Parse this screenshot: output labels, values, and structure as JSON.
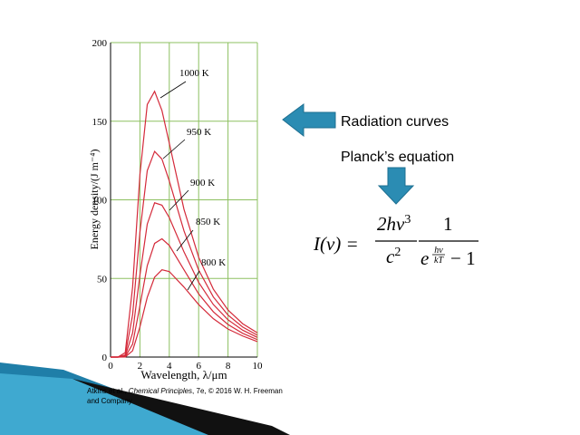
{
  "chart_data": {
    "type": "line",
    "x": [
      0,
      0.5,
      1,
      1.5,
      2,
      2.5,
      3,
      3.5,
      4,
      5,
      6,
      7,
      8,
      9,
      10
    ],
    "series": [
      {
        "name": "1000 K",
        "color": "#d42a3a",
        "values": [
          0,
          0,
          2.8,
          44.4,
          116,
          160.6,
          169,
          156.8,
          136,
          94,
          63.5,
          43.2,
          29.9,
          21.2,
          15.4
        ]
      },
      {
        "name": "950 K",
        "color": "#d42a3a",
        "values": [
          0,
          0,
          1.3,
          26.8,
          79.4,
          118.6,
          130.8,
          125.9,
          112,
          80.3,
          55.3,
          38.2,
          26.7,
          19.1,
          13.9
        ]
      },
      {
        "name": "900 K",
        "color": "#d42a3a",
        "values": [
          0,
          0,
          0.56,
          15.3,
          52.1,
          84.6,
          98.1,
          96.6,
          88.7,
          66.9,
          47.5,
          33.4,
          23.7,
          17.1,
          12.5
        ]
      },
      {
        "name": "850 K",
        "color": "#d42a3a",
        "values": [
          0,
          0,
          0.22,
          8.2,
          32.6,
          58.1,
          72.3,
          75.2,
          71,
          55.5,
          40.2,
          28.8,
          20.7,
          15.1,
          11.1
        ]
      },
      {
        "name": "800 K",
        "color": "#d42a3a",
        "values": [
          0,
          0,
          0.08,
          4,
          19.2,
          38,
          50.8,
          55.5,
          54.4,
          44.5,
          33.4,
          24.4,
          17.8,
          13.4,
          9.8
        ]
      }
    ],
    "xlim": [
      0,
      10
    ],
    "xticks": [
      0,
      2,
      4,
      6,
      8,
      10
    ],
    "ylim": [
      0,
      200
    ],
    "yticks": [
      0,
      50,
      100,
      150,
      200
    ],
    "grid": true,
    "grid_color": "#8dc060",
    "x_label": "Wavelength, λ/μm",
    "y_label": "Energy density/(J m⁻⁴)"
  },
  "caption": {
    "before": "Atkins et al., ",
    "italic": "Chemical Principles",
    "after": ", 7e, © 2016 W. H. Freeman",
    "line2": "and Company"
  },
  "callout_1": "Radiation curves",
  "callout_2": "Planck’s equation",
  "equation": {
    "lhs": "I(ν) =",
    "num1": "2hν",
    "num1_exp": "3",
    "den1": "c",
    "den1_exp": "2",
    "num2": "1",
    "den2_base": "e",
    "den2_exp_num": "hν",
    "den2_exp_den": "kT",
    "den2_tail": "− 1"
  }
}
